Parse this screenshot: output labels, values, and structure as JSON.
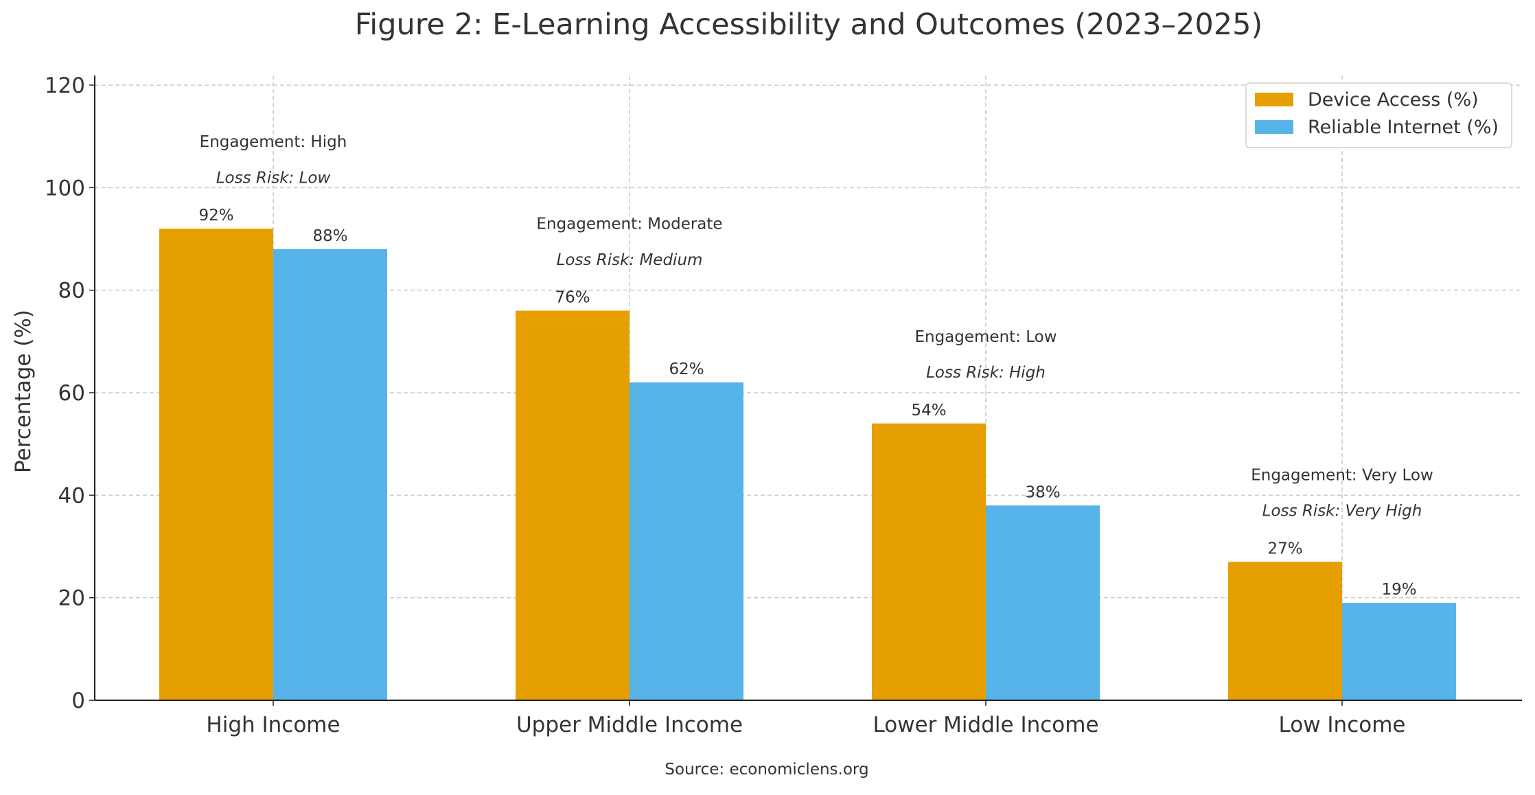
{
  "chart_data": {
    "type": "bar",
    "title": "Figure 2: E-Learning Accessibility and Outcomes (2023–2025)",
    "xlabel": "",
    "ylabel": "Percentage (%)",
    "ylim": [
      0,
      120
    ],
    "yticks": [
      0,
      20,
      40,
      60,
      80,
      100,
      120
    ],
    "grid": true,
    "legend_position": "top-right",
    "categories": [
      "High Income",
      "Upper Middle Income",
      "Lower Middle Income",
      "Low Income"
    ],
    "series": [
      {
        "name": "Device Access (%)",
        "values": [
          92,
          76,
          54,
          27
        ],
        "labels": [
          "92%",
          "76%",
          "54%",
          "27%"
        ],
        "color": "#E69F00"
      },
      {
        "name": "Reliable Internet (%)",
        "values": [
          88,
          62,
          38,
          19
        ],
        "labels": [
          "88%",
          "62%",
          "38%",
          "19%"
        ],
        "color": "#56B4E9"
      }
    ],
    "annotations": [
      {
        "engagement": "Engagement: High",
        "loss_risk": "Loss Risk: Low"
      },
      {
        "engagement": "Engagement: Moderate",
        "loss_risk": "Loss Risk: Medium"
      },
      {
        "engagement": "Engagement: Low",
        "loss_risk": "Loss Risk: High"
      },
      {
        "engagement": "Engagement: Very Low",
        "loss_risk": "Loss Risk: Very High"
      }
    ],
    "source": "Source: economiclens.org"
  }
}
